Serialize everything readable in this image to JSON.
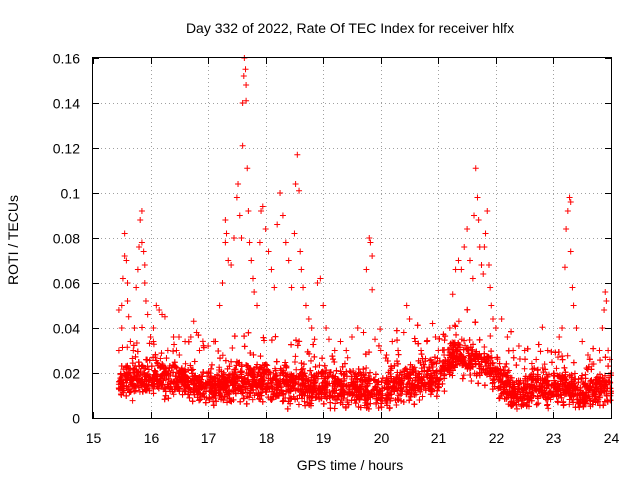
{
  "chart_data": {
    "type": "scatter",
    "title": "Day 332 of 2022, Rate Of TEC Index for receiver hlfx",
    "xlabel": "GPS time / hours",
    "ylabel": "ROTI / TECUs",
    "xlim": [
      15,
      24
    ],
    "ylim": [
      0,
      0.16
    ],
    "xticks": [
      "15",
      "16",
      "17",
      "18",
      "19",
      "20",
      "21",
      "22",
      "23",
      "24"
    ],
    "yticks": [
      "0",
      "0.02",
      "0.04",
      "0.06",
      "0.08",
      "0.1",
      "0.12",
      "0.14",
      "0.16"
    ],
    "grid": true,
    "marker": "+",
    "series": [
      {
        "name": "ROTI",
        "color": "#ff0000",
        "points": [
          [
            15.45,
            0.015
          ],
          [
            15.45,
            0.03
          ],
          [
            15.45,
            0.048
          ],
          [
            15.5,
            0.05
          ],
          [
            15.5,
            0.04
          ],
          [
            15.52,
            0.062
          ],
          [
            15.55,
            0.072
          ],
          [
            15.55,
            0.082
          ],
          [
            15.58,
            0.07
          ],
          [
            15.6,
            0.06
          ],
          [
            15.6,
            0.052
          ],
          [
            15.62,
            0.045
          ],
          [
            15.65,
            0.034
          ],
          [
            15.7,
            0.03
          ],
          [
            15.72,
            0.04
          ],
          [
            15.75,
            0.058
          ],
          [
            15.78,
            0.066
          ],
          [
            15.8,
            0.076
          ],
          [
            15.82,
            0.088
          ],
          [
            15.85,
            0.092
          ],
          [
            15.85,
            0.078
          ],
          [
            15.88,
            0.074
          ],
          [
            15.9,
            0.068
          ],
          [
            15.9,
            0.06
          ],
          [
            15.92,
            0.052
          ],
          [
            15.95,
            0.046
          ],
          [
            16.0,
            0.036
          ],
          [
            16.05,
            0.04
          ],
          [
            16.05,
            0.034
          ],
          [
            16.1,
            0.05
          ],
          [
            16.15,
            0.048
          ],
          [
            16.2,
            0.046
          ],
          [
            16.25,
            0.045
          ],
          [
            16.3,
            0.03
          ],
          [
            16.4,
            0.036
          ],
          [
            16.45,
            0.03
          ],
          [
            16.5,
            0.028
          ],
          [
            16.6,
            0.034
          ],
          [
            16.7,
            0.036
          ],
          [
            16.75,
            0.043
          ],
          [
            16.8,
            0.038
          ],
          [
            16.85,
            0.03
          ],
          [
            17.0,
            0.032
          ],
          [
            17.1,
            0.034
          ],
          [
            17.2,
            0.05
          ],
          [
            17.25,
            0.06
          ],
          [
            17.3,
            0.078
          ],
          [
            17.3,
            0.088
          ],
          [
            17.32,
            0.082
          ],
          [
            17.35,
            0.07
          ],
          [
            17.4,
            0.068
          ],
          [
            17.45,
            0.08
          ],
          [
            17.5,
            0.098
          ],
          [
            17.52,
            0.104
          ],
          [
            17.55,
            0.09
          ],
          [
            17.58,
            0.08
          ],
          [
            17.6,
            0.121
          ],
          [
            17.6,
            0.14
          ],
          [
            17.62,
            0.152
          ],
          [
            17.63,
            0.16
          ],
          [
            17.65,
            0.155
          ],
          [
            17.66,
            0.148
          ],
          [
            17.66,
            0.141
          ],
          [
            17.68,
            0.111
          ],
          [
            17.7,
            0.092
          ],
          [
            17.72,
            0.078
          ],
          [
            17.75,
            0.07
          ],
          [
            17.78,
            0.062
          ],
          [
            17.8,
            0.056
          ],
          [
            17.85,
            0.05
          ],
          [
            17.9,
            0.078
          ],
          [
            17.92,
            0.092
          ],
          [
            17.95,
            0.094
          ],
          [
            18.0,
            0.084
          ],
          [
            18.05,
            0.074
          ],
          [
            18.1,
            0.066
          ],
          [
            18.15,
            0.058
          ],
          [
            18.2,
            0.086
          ],
          [
            18.25,
            0.1
          ],
          [
            18.3,
            0.09
          ],
          [
            18.35,
            0.078
          ],
          [
            18.4,
            0.07
          ],
          [
            18.45,
            0.058
          ],
          [
            18.5,
            0.082
          ],
          [
            18.52,
            0.104
          ],
          [
            18.55,
            0.117
          ],
          [
            18.58,
            0.101
          ],
          [
            18.6,
            0.074
          ],
          [
            18.62,
            0.066
          ],
          [
            18.65,
            0.058
          ],
          [
            18.7,
            0.05
          ],
          [
            18.75,
            0.044
          ],
          [
            18.8,
            0.04
          ],
          [
            18.85,
            0.035
          ],
          [
            18.9,
            0.06
          ],
          [
            18.95,
            0.062
          ],
          [
            19.0,
            0.05
          ],
          [
            19.05,
            0.04
          ],
          [
            19.1,
            0.035
          ],
          [
            19.2,
            0.03
          ],
          [
            19.3,
            0.034
          ],
          [
            19.4,
            0.03
          ],
          [
            19.5,
            0.036
          ],
          [
            19.6,
            0.04
          ],
          [
            19.7,
            0.038
          ],
          [
            19.75,
            0.066
          ],
          [
            19.8,
            0.08
          ],
          [
            19.82,
            0.078
          ],
          [
            19.85,
            0.072
          ],
          [
            19.85,
            0.057
          ],
          [
            19.9,
            0.035
          ],
          [
            20.0,
            0.03
          ],
          [
            20.1,
            0.028
          ],
          [
            20.2,
            0.034
          ],
          [
            20.3,
            0.03
          ],
          [
            20.4,
            0.038
          ],
          [
            20.45,
            0.05
          ],
          [
            20.5,
            0.044
          ],
          [
            20.6,
            0.034
          ],
          [
            20.7,
            0.03
          ],
          [
            20.8,
            0.034
          ],
          [
            20.9,
            0.042
          ],
          [
            20.95,
            0.036
          ],
          [
            21.0,
            0.03
          ],
          [
            21.1,
            0.028
          ],
          [
            21.2,
            0.04
          ],
          [
            21.25,
            0.055
          ],
          [
            21.3,
            0.066
          ],
          [
            21.35,
            0.07
          ],
          [
            21.4,
            0.066
          ],
          [
            21.45,
            0.076
          ],
          [
            21.5,
            0.084
          ],
          [
            21.55,
            0.07
          ],
          [
            21.6,
            0.062
          ],
          [
            21.62,
            0.09
          ],
          [
            21.65,
            0.111
          ],
          [
            21.68,
            0.098
          ],
          [
            21.7,
            0.088
          ],
          [
            21.72,
            0.076
          ],
          [
            21.75,
            0.068
          ],
          [
            21.78,
            0.064
          ],
          [
            21.8,
            0.076
          ],
          [
            21.82,
            0.082
          ],
          [
            21.85,
            0.092
          ],
          [
            21.88,
            0.068
          ],
          [
            21.9,
            0.058
          ],
          [
            21.92,
            0.05
          ],
          [
            21.95,
            0.044
          ],
          [
            22.0,
            0.04
          ],
          [
            22.1,
            0.044
          ],
          [
            22.2,
            0.036
          ],
          [
            22.3,
            0.03
          ],
          [
            22.4,
            0.032
          ],
          [
            22.5,
            0.03
          ],
          [
            22.7,
            0.026
          ],
          [
            22.9,
            0.03
          ],
          [
            23.1,
            0.036
          ],
          [
            23.15,
            0.04
          ],
          [
            23.2,
            0.067
          ],
          [
            23.22,
            0.084
          ],
          [
            23.25,
            0.092
          ],
          [
            23.28,
            0.098
          ],
          [
            23.3,
            0.096
          ],
          [
            23.3,
            0.074
          ],
          [
            23.33,
            0.058
          ],
          [
            23.35,
            0.05
          ],
          [
            23.4,
            0.04
          ],
          [
            23.5,
            0.034
          ],
          [
            23.6,
            0.028
          ],
          [
            23.7,
            0.024
          ],
          [
            23.8,
            0.03
          ],
          [
            23.85,
            0.04
          ],
          [
            23.88,
            0.048
          ],
          [
            23.9,
            0.056
          ],
          [
            23.92,
            0.052
          ],
          [
            23.95,
            0.03
          ],
          [
            23.98,
            0.026
          ],
          [
            24.0,
            0.02
          ]
        ],
        "dense_band": {
          "description_none": null,
          "x_range": [
            15.45,
            24.0
          ],
          "baseline": [
            [
              15.45,
              0.016
            ],
            [
              16.0,
              0.018
            ],
            [
              16.5,
              0.017
            ],
            [
              17.0,
              0.014
            ],
            [
              17.5,
              0.016
            ],
            [
              18.0,
              0.016
            ],
            [
              18.5,
              0.015
            ],
            [
              19.0,
              0.014
            ],
            [
              19.5,
              0.013
            ],
            [
              20.0,
              0.012
            ],
            [
              20.5,
              0.016
            ],
            [
              21.0,
              0.018
            ],
            [
              21.3,
              0.03
            ],
            [
              21.6,
              0.026
            ],
            [
              22.0,
              0.02
            ],
            [
              22.3,
              0.01
            ],
            [
              22.7,
              0.014
            ],
            [
              23.0,
              0.014
            ],
            [
              23.5,
              0.012
            ],
            [
              24.0,
              0.012
            ]
          ],
          "spread": 0.012,
          "count": 5200
        }
      }
    ]
  }
}
